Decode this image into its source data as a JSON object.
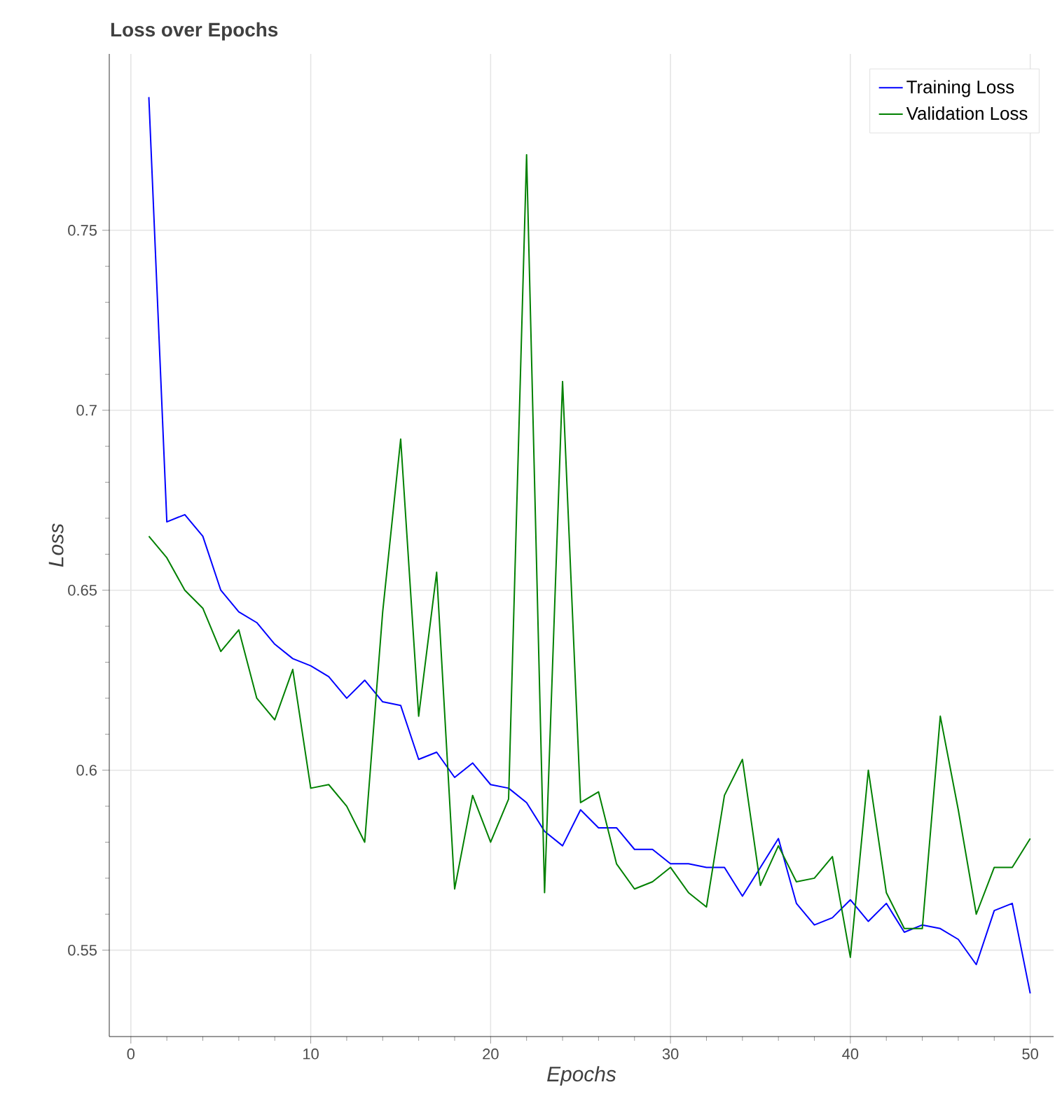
{
  "chart_data": {
    "type": "line",
    "title": "Loss over Epochs",
    "xlabel": "Epochs",
    "ylabel": "Loss",
    "x": [
      1,
      2,
      3,
      4,
      5,
      6,
      7,
      8,
      9,
      10,
      11,
      12,
      13,
      14,
      15,
      16,
      17,
      18,
      19,
      20,
      21,
      22,
      23,
      24,
      25,
      26,
      27,
      28,
      29,
      30,
      31,
      32,
      33,
      34,
      35,
      36,
      37,
      38,
      39,
      40,
      41,
      42,
      43,
      44,
      45,
      46,
      47,
      48,
      49,
      50
    ],
    "series": [
      {
        "name": "Training Loss",
        "color": "#0000ff",
        "values": [
          0.787,
          0.669,
          0.671,
          0.665,
          0.65,
          0.644,
          0.641,
          0.635,
          0.631,
          0.629,
          0.626,
          0.62,
          0.625,
          0.619,
          0.618,
          0.603,
          0.605,
          0.598,
          0.602,
          0.596,
          0.595,
          0.591,
          0.583,
          0.579,
          0.589,
          0.584,
          0.584,
          0.578,
          0.578,
          0.574,
          0.574,
          0.573,
          0.573,
          0.565,
          0.573,
          0.581,
          0.563,
          0.557,
          0.559,
          0.564,
          0.558,
          0.563,
          0.555,
          0.557,
          0.556,
          0.553,
          0.546,
          0.561,
          0.563,
          0.538
        ]
      },
      {
        "name": "Validation Loss",
        "color": "#008000",
        "values": [
          0.665,
          0.659,
          0.65,
          0.645,
          0.633,
          0.639,
          0.62,
          0.614,
          0.628,
          0.595,
          0.596,
          0.59,
          0.58,
          0.644,
          0.692,
          0.615,
          0.655,
          0.567,
          0.593,
          0.58,
          0.592,
          0.771,
          0.566,
          0.708,
          0.591,
          0.594,
          0.574,
          0.567,
          0.569,
          0.573,
          0.566,
          0.562,
          0.593,
          0.603,
          0.568,
          0.579,
          0.569,
          0.57,
          0.576,
          0.548,
          0.6,
          0.566,
          0.556,
          0.556,
          0.615,
          0.589,
          0.56,
          0.573,
          0.573,
          0.581
        ]
      }
    ],
    "xlim": [
      -1.2,
      51.3
    ],
    "ylim": [
      0.526,
      0.799
    ],
    "xticks": [
      0,
      10,
      20,
      30,
      40,
      50
    ],
    "yticks": [
      0.55,
      0.6,
      0.65,
      0.7,
      0.75
    ],
    "grid": true,
    "legend": "top right"
  }
}
